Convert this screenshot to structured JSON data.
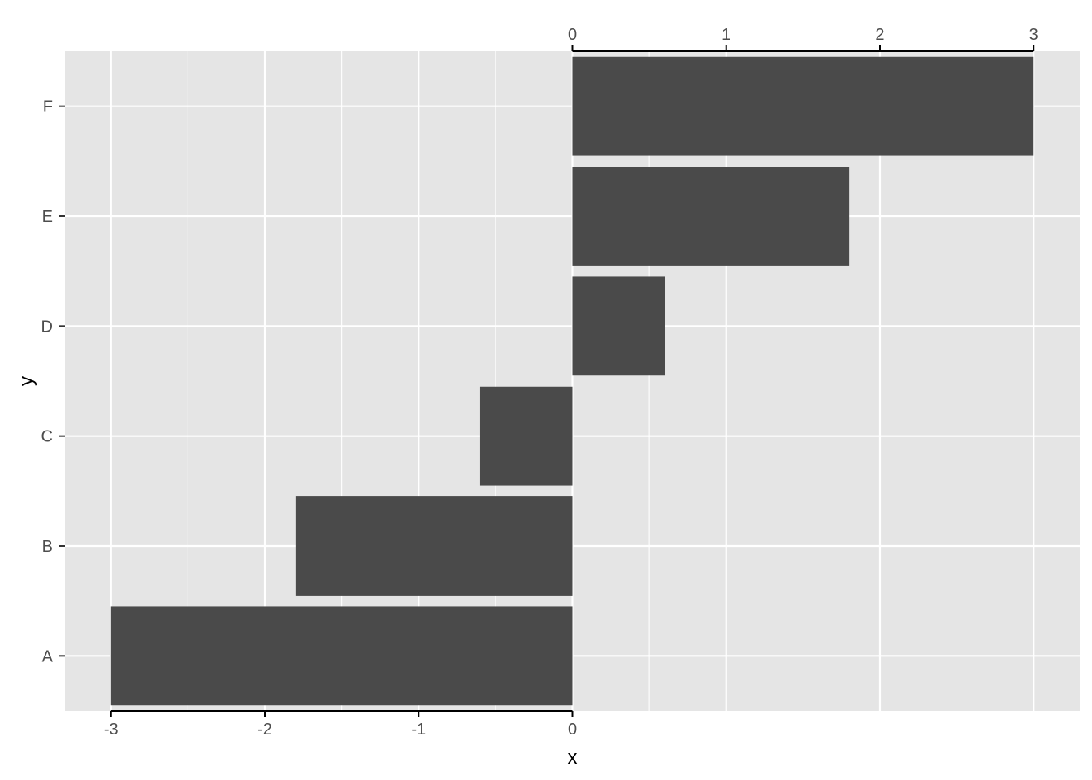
{
  "chart_data": {
    "type": "bar",
    "orientation": "horizontal",
    "categories": [
      "A",
      "B",
      "C",
      "D",
      "E",
      "F"
    ],
    "values": [
      -3,
      -1.8,
      -0.6,
      0.6,
      1.8,
      3
    ],
    "xlabel": "x",
    "ylabel": "y",
    "xlim": [
      -3.3,
      3.3
    ],
    "bottom_axis": {
      "ticks": [
        -3,
        -2,
        -1,
        0
      ],
      "labels": [
        "-3",
        "-2",
        "-1",
        "0"
      ]
    },
    "top_axis": {
      "ticks": [
        0,
        1,
        2,
        3
      ],
      "labels": [
        "0",
        "1",
        "2",
        "3"
      ]
    },
    "grid": true,
    "colors": {
      "panel": "#e5e5e5",
      "bar": "#4a4a4a",
      "grid": "#ffffff",
      "axis": "#000000"
    }
  }
}
